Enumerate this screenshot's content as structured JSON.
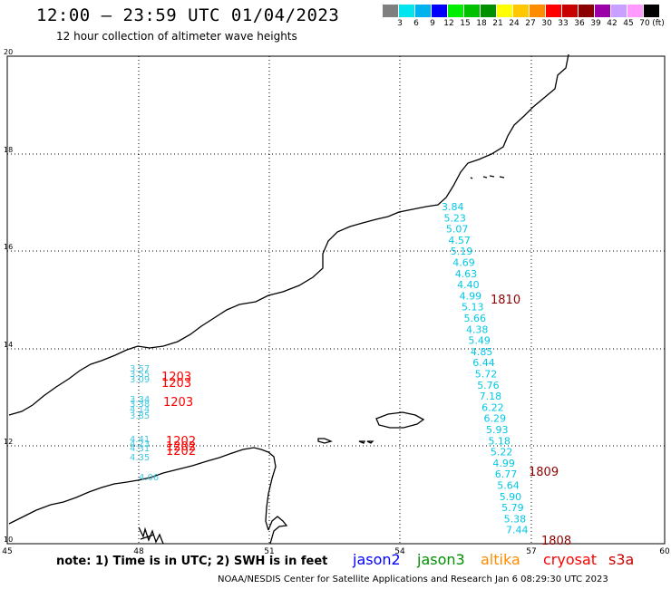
{
  "header": {
    "title": "12:00 – 23:59 UTC 01/04/2023",
    "subtitle": "12 hour collection of altimeter wave heights"
  },
  "legend": {
    "unit": "(ft)",
    "swatches": [
      {
        "label": "3",
        "color": "#7f7f7f"
      },
      {
        "label": "6",
        "color": "#00e5ee"
      },
      {
        "label": "9",
        "color": "#00b2ee"
      },
      {
        "label": "12",
        "color": "#0000ff"
      },
      {
        "label": "15",
        "color": "#00ee00"
      },
      {
        "label": "18",
        "color": "#00c000"
      },
      {
        "label": "21",
        "color": "#009000"
      },
      {
        "label": "24",
        "color": "#ffff00"
      },
      {
        "label": "27",
        "color": "#ffc800"
      },
      {
        "label": "30",
        "color": "#ff8c00"
      },
      {
        "label": "33",
        "color": "#ff0000"
      },
      {
        "label": "36",
        "color": "#c80000"
      },
      {
        "label": "39",
        "color": "#8b0000"
      },
      {
        "label": "42",
        "color": "#9b00a8"
      },
      {
        "label": "45",
        "color": "#c8a0ff"
      },
      {
        "label": "70",
        "color": "#ff9bff"
      },
      {
        "label": "",
        "color": "#000000"
      }
    ]
  },
  "axes": {
    "longitudes": [
      "45",
      "48",
      "51",
      "54",
      "57",
      "60"
    ],
    "latitudes": [
      "10",
      "12",
      "14",
      "16",
      "18",
      "20"
    ]
  },
  "tracks": {
    "east_color": "#00c8e6",
    "west_color": "#40c8e0",
    "time_color_dark": "#8b0000",
    "time_color_red": "#ff0000",
    "east_values": [
      "3.84",
      "5.23",
      "5.07",
      "4.57",
      "5.19",
      "4.69",
      "4.63",
      "4.40",
      "4.99",
      "5.13",
      "5.66",
      "4.38",
      "5.49",
      "4.85",
      "6.44",
      "5.72",
      "5.76",
      "7.18",
      "6.22",
      "6.29",
      "5.93",
      "5.18",
      "5.22",
      "4.99",
      "6.77",
      "5.64",
      "5.90",
      "5.79",
      "5.38",
      "7.44"
    ],
    "west_values": [
      "3.57",
      "3.55",
      "3.09",
      "3.34",
      "3.38",
      "4.14",
      "3.85",
      "4.41",
      "4.23",
      "4.31",
      "4.35",
      "4.06"
    ],
    "time_labels": [
      "1810",
      "1809",
      "1808",
      "1203",
      "1203",
      "1203",
      "1202",
      "1202",
      "1202"
    ]
  },
  "footer": {
    "note": "note:  1) Time is in UTC;  2) SWH is in feet",
    "satellites": [
      {
        "name": "jason2",
        "color": "#0000ff"
      },
      {
        "name": "jason3",
        "color": "#009000"
      },
      {
        "name": "altika",
        "color": "#ff8c00"
      },
      {
        "name": "cryosat",
        "color": "#ff0000"
      },
      {
        "name": "s3a",
        "color": "#c80000"
      }
    ],
    "credit": "NOAA/NESDIS Center for Satellite Applications and Research    Jan  6 08:29:30 UTC 2023"
  }
}
